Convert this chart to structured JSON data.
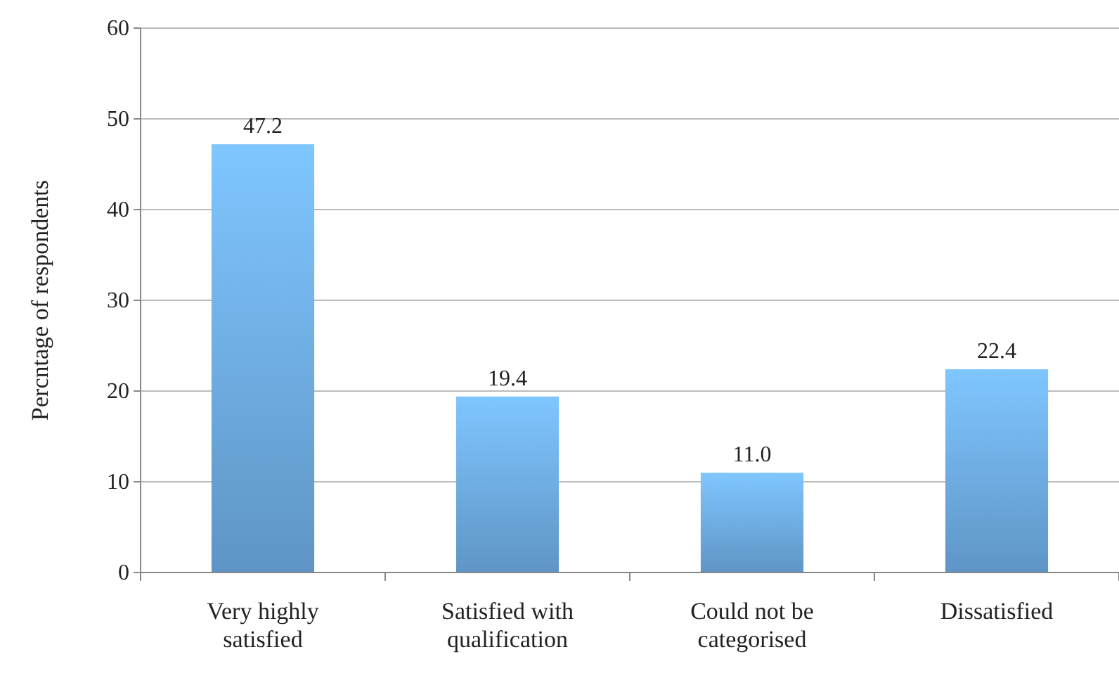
{
  "chart_data": {
    "type": "bar",
    "ylabel": "Percntage of respondents",
    "categories": [
      "Very highly satisfied",
      "Satisfied with qualification",
      "Could not be categorised",
      "Dissatisfied"
    ],
    "values": [
      47.2,
      19.4,
      11.0,
      22.4
    ],
    "value_labels": [
      "47.2",
      "19.4",
      "11.0",
      "22.4"
    ],
    "color": "#6aa6dc",
    "ylim": [
      0,
      60
    ],
    "yticks": [
      0,
      10,
      20,
      30,
      40,
      50,
      60
    ],
    "grid": "y"
  }
}
